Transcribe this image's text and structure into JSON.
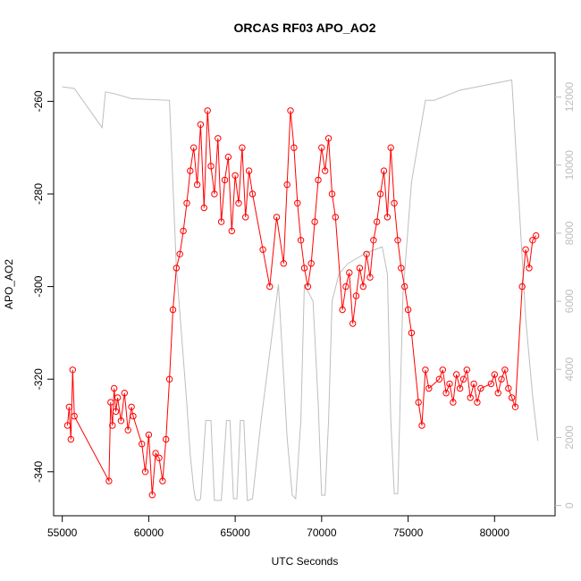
{
  "chart_data": {
    "type": "line",
    "title": "ORCAS RF03 APO_AO2",
    "xlabel": "UTC Seconds",
    "ylabel": "APO_AO2",
    "xlim": [
      54500,
      83500
    ],
    "ylim": [
      -349.5,
      -249.5
    ],
    "y2lim": [
      -300,
      13300
    ],
    "x_ticks": [
      55000,
      60000,
      65000,
      70000,
      75000,
      80000
    ],
    "y_ticks": [
      -340,
      -320,
      -300,
      -280,
      -260
    ],
    "y2_ticks": [
      0,
      2000,
      4000,
      6000,
      8000,
      10000,
      12000
    ],
    "colors": {
      "series": "#ff0000",
      "altitude": "#bebebe",
      "axis": "#000000"
    },
    "series": [
      {
        "marker": "open-circle",
        "color": "#ff0000",
        "x": [
          55300,
          55400,
          55500,
          55600,
          55700,
          57700,
          57800,
          57900,
          58000,
          58100,
          58200,
          58400,
          58600,
          58800,
          59000,
          59100,
          59600,
          59800,
          60000,
          60200,
          60400,
          60600,
          60800,
          61000,
          61200,
          61400,
          61600,
          61800,
          62000,
          62200,
          62400,
          62600,
          62800,
          63000,
          63200,
          63400,
          63600,
          63800,
          64000,
          64200,
          64400,
          64600,
          64800,
          65000,
          65200,
          65400,
          65600,
          65800,
          66000,
          66600,
          67000,
          67400,
          67800,
          68000,
          68200,
          68400,
          68600,
          68800,
          69000,
          69200,
          69400,
          69600,
          69800,
          70000,
          70200,
          70400,
          70600,
          70800,
          71200,
          71400,
          71600,
          71800,
          72000,
          72200,
          72400,
          72600,
          72800,
          73000,
          73200,
          73400,
          73600,
          73800,
          74000,
          74200,
          74400,
          74600,
          74800,
          75000,
          75200,
          75600,
          75800,
          76000,
          76200,
          76800,
          77000,
          77200,
          77400,
          77600,
          77800,
          78000,
          78200,
          78400,
          78600,
          78800,
          79000,
          79200,
          79800,
          80000,
          80200,
          80400,
          80600,
          80800,
          81000,
          81200,
          81600,
          81800,
          82000,
          82200,
          82400
        ],
        "y": [
          -330,
          -326,
          -333,
          -318,
          -328,
          -342,
          -325,
          -330,
          -322,
          -327,
          -324,
          -329,
          -323,
          -331,
          -326,
          -328,
          -334,
          -340,
          -332,
          -345,
          -336,
          -337,
          -342,
          -333,
          -320,
          -305,
          -296,
          -293,
          -288,
          -282,
          -275,
          -270,
          -278,
          -265,
          -283,
          -262,
          -274,
          -280,
          -268,
          -286,
          -277,
          -272,
          -288,
          -276,
          -282,
          -270,
          -285,
          -275,
          -280,
          -292,
          -300,
          -285,
          -295,
          -278,
          -262,
          -270,
          -282,
          -290,
          -296,
          -300,
          -295,
          -286,
          -277,
          -270,
          -275,
          -268,
          -280,
          -285,
          -305,
          -300,
          -297,
          -308,
          -302,
          -296,
          -300,
          -293,
          -298,
          -290,
          -286,
          -280,
          -275,
          -285,
          -270,
          -282,
          -290,
          -296,
          -300,
          -305,
          -310,
          -325,
          -330,
          -318,
          -322,
          -320,
          -318,
          -323,
          -321,
          -325,
          -319,
          -322,
          -320,
          -318,
          -324,
          -321,
          -325,
          -322,
          -321,
          -319,
          -323,
          -320,
          -318,
          -322,
          -324,
          -326,
          -300,
          -292,
          -296,
          -290,
          -289
        ]
      },
      {
        "name": "",
        "color": "#bebebe",
        "x": [
          55000,
          55700,
          57300,
          57500,
          58000,
          59000,
          61200,
          61600,
          62200,
          62400,
          62600,
          62700,
          62800,
          62900,
          63000,
          63300,
          63600,
          63800,
          64200,
          64500,
          64700,
          64900,
          65100,
          65300,
          65500,
          65700,
          66000,
          66500,
          67500,
          68000,
          68300,
          68500,
          68800,
          69000,
          69500,
          69800,
          70000,
          70200,
          70400,
          70600,
          71000,
          71500,
          72500,
          73500,
          73800,
          74000,
          74200,
          74400,
          74700,
          75200,
          76000,
          76500,
          77000,
          78000,
          79000,
          80000,
          81000,
          81400,
          81800,
          82200,
          82500
        ],
        "y": [
          12300,
          12250,
          11100,
          12150,
          12100,
          11950,
          11900,
          7000,
          3000,
          1500,
          500,
          200,
          150,
          150,
          200,
          2500,
          2500,
          150,
          150,
          2500,
          2500,
          200,
          200,
          2500,
          2500,
          150,
          200,
          2500,
          6500,
          2000,
          300,
          200,
          2500,
          6500,
          6000,
          3000,
          300,
          300,
          2500,
          6000,
          6800,
          7100,
          7400,
          7600,
          6800,
          2500,
          350,
          350,
          6200,
          9500,
          11900,
          11900,
          12000,
          12200,
          12300,
          12400,
          12500,
          9000,
          5500,
          3200,
          1900
        ]
      }
    ]
  }
}
